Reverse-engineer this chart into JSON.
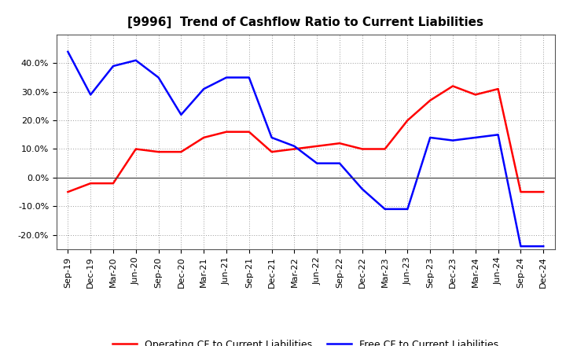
{
  "title": "[9996]  Trend of Cashflow Ratio to Current Liabilities",
  "labels": [
    "Sep-19",
    "Dec-19",
    "Mar-20",
    "Jun-20",
    "Sep-20",
    "Dec-20",
    "Mar-21",
    "Jun-21",
    "Sep-21",
    "Dec-21",
    "Mar-22",
    "Jun-22",
    "Sep-22",
    "Dec-22",
    "Mar-23",
    "Jun-23",
    "Sep-23",
    "Dec-23",
    "Mar-24",
    "Jun-24",
    "Sep-24",
    "Dec-24"
  ],
  "operating_cf": [
    -0.05,
    -0.02,
    -0.02,
    0.1,
    0.09,
    0.09,
    0.14,
    0.16,
    0.16,
    0.09,
    0.1,
    0.11,
    0.12,
    0.1,
    0.1,
    0.2,
    0.27,
    0.32,
    0.29,
    0.31,
    -0.05,
    -0.05
  ],
  "free_cf": [
    0.44,
    0.29,
    0.39,
    0.41,
    0.35,
    0.22,
    0.31,
    0.35,
    0.35,
    0.14,
    0.11,
    0.05,
    0.05,
    -0.04,
    -0.11,
    -0.11,
    0.14,
    0.13,
    0.14,
    0.15,
    -0.24,
    -0.24
  ],
  "operating_cf_label": "Operating CF to Current Liabilities",
  "free_cf_label": "Free CF to Current Liabilities",
  "operating_cf_color": "#ff0000",
  "free_cf_color": "#0000ff",
  "ylim": [
    -0.25,
    0.5
  ],
  "yticks": [
    -0.2,
    -0.1,
    0.0,
    0.1,
    0.2,
    0.3,
    0.4
  ],
  "background_color": "#ffffff",
  "grid_color": "#999999",
  "title_fontsize": 11,
  "legend_fontsize": 9,
  "tick_fontsize": 8
}
